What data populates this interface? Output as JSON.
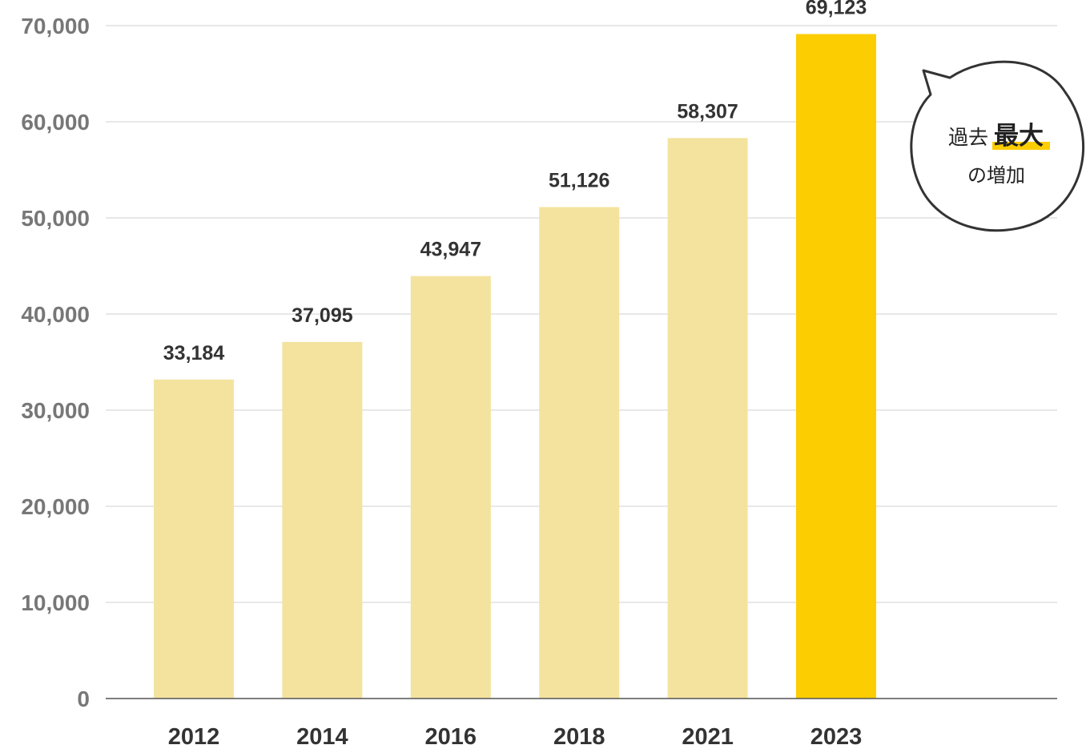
{
  "chart_data": {
    "type": "bar",
    "categories": [
      "2012",
      "2014",
      "2016",
      "2018",
      "2021",
      "2023"
    ],
    "values": [
      33184,
      37095,
      43947,
      51126,
      58307,
      69123
    ],
    "value_labels": [
      "33,184",
      "37,095",
      "43,947",
      "51,126",
      "58,307",
      "69,123"
    ],
    "y_ticks": [
      "0",
      "10,000",
      "20,000",
      "30,000",
      "40,000",
      "50,000",
      "60,000",
      "70,000"
    ],
    "ylim": [
      0,
      70000
    ],
    "grid": true,
    "colors": {
      "bar": "#f3e39e",
      "highlight": "#fccd00",
      "grid": "#d9d9d9",
      "baseline": "#555555"
    },
    "highlight_category": "2023",
    "annotation": {
      "line1_prefix": "過去",
      "line1_emphasis": "最大",
      "line2": "の増加",
      "placement": "right of highlighted bar"
    }
  }
}
